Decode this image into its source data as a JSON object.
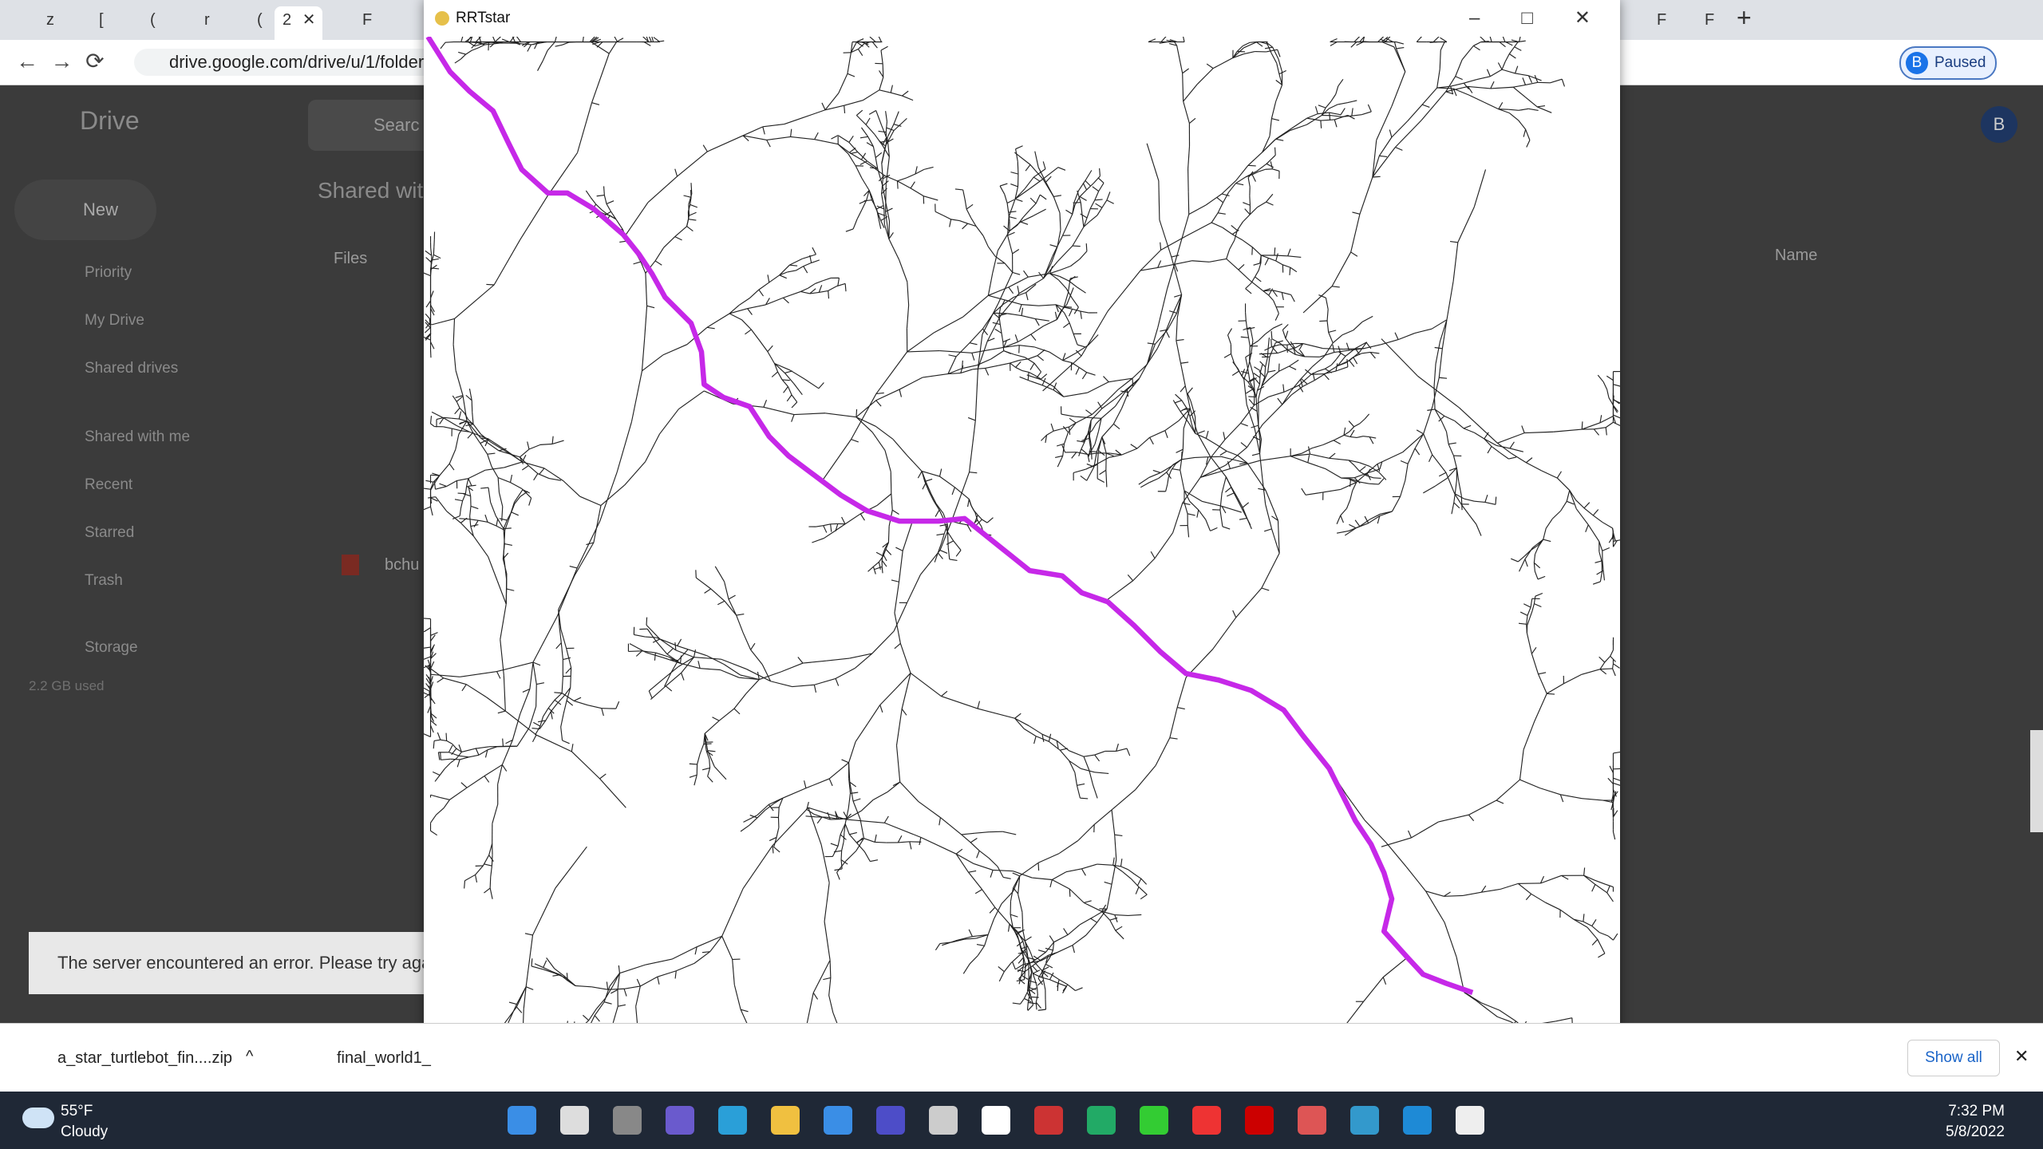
{
  "browser": {
    "tabs": [
      "z",
      "[",
      "(",
      "r",
      "(",
      "2",
      "F",
      "F",
      "F"
    ],
    "url": "drive.google.com/drive/u/1/folder",
    "profile_initial": "B",
    "profile": "Paused"
  },
  "drive": {
    "logo": "Drive",
    "search": "Searc",
    "new": "New",
    "nav": [
      "Priority",
      "My Drive",
      "Shared drives",
      "Shared with me",
      "Recent",
      "Starred",
      "Trash",
      "Storage"
    ],
    "storage_used": "2.2 GB used",
    "heading": "Shared wit",
    "files_label": "Files",
    "sort_label": "Name",
    "file": "bchu",
    "account_initial": "B",
    "error": "The server encountered an error. Please try again"
  },
  "window": {
    "title": "RRTstar"
  },
  "downloads": {
    "items": [
      "a_star_turtlebot_fin....zip",
      "final_world1_"
    ],
    "show_all": "Show all"
  },
  "taskbar": {
    "temperature": "55°F",
    "weather": "Cloudy",
    "time": "7:32 PM",
    "date": "5/8/2022"
  }
}
